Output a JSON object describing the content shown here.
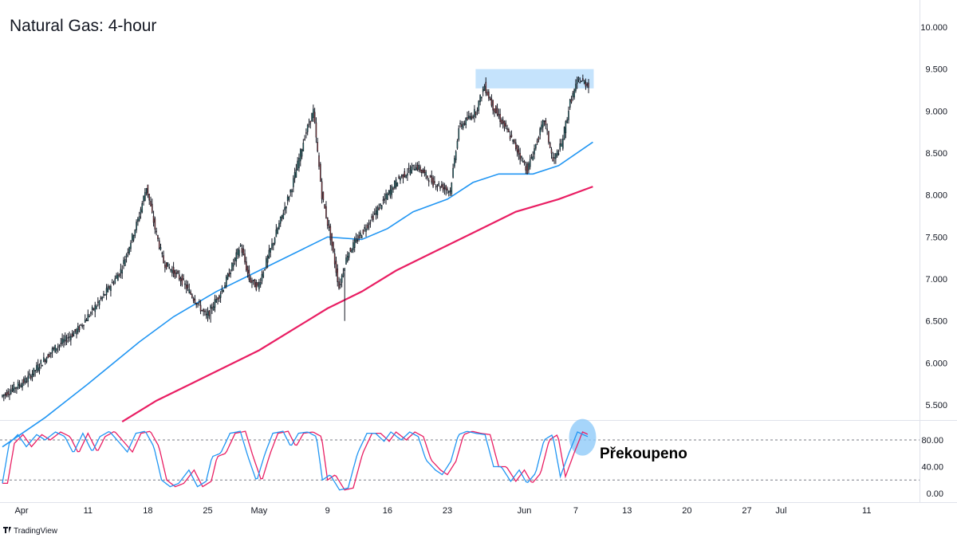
{
  "chart_data": {
    "type": "candlestick",
    "title": "Natural Gas: 4-hour",
    "watermark": "TradingView",
    "colors": {
      "up": "#26a69a",
      "down": "#ef5350",
      "candle_body": "#131722",
      "ma_fast": "#2196f3",
      "ma_slow": "#e91e63",
      "zone": "#bbdefb",
      "stoch_k": "#2196f3",
      "stoch_d": "#e91e63",
      "highlight": "#90caf9"
    },
    "price_axis": {
      "ticks": [
        "5.500",
        "6.000",
        "6.500",
        "7.000",
        "7.500",
        "8.000",
        "8.500",
        "9.000",
        "9.500",
        "10.000"
      ],
      "range": [
        5.3,
        10.2
      ]
    },
    "x_axis": {
      "range_days": [
        0,
        104
      ],
      "ticks": [
        {
          "label": "Apr",
          "day": 0
        },
        {
          "label": "11",
          "day": 10
        },
        {
          "label": "18",
          "day": 17
        },
        {
          "label": "25",
          "day": 24
        },
        {
          "label": "May",
          "day": 30
        },
        {
          "label": "9",
          "day": 38
        },
        {
          "label": "16",
          "day": 45
        },
        {
          "label": "23",
          "day": 52
        },
        {
          "label": "Jun",
          "day": 61
        },
        {
          "label": "7",
          "day": 67
        },
        {
          "label": "13",
          "day": 73
        },
        {
          "label": "20",
          "day": 80
        },
        {
          "label": "27",
          "day": 87
        },
        {
          "label": "Jul",
          "day": 91
        },
        {
          "label": "11",
          "day": 101
        }
      ]
    },
    "price_waypoints": [
      [
        0,
        5.6
      ],
      [
        3,
        5.8
      ],
      [
        6,
        6.15
      ],
      [
        9,
        6.4
      ],
      [
        12,
        6.8
      ],
      [
        14,
        7.1
      ],
      [
        16,
        7.7
      ],
      [
        17,
        8.1
      ],
      [
        18,
        7.6
      ],
      [
        19,
        7.2
      ],
      [
        21,
        7.0
      ],
      [
        23,
        6.7
      ],
      [
        24,
        6.55
      ],
      [
        26,
        6.9
      ],
      [
        28,
        7.4
      ],
      [
        29,
        7.0
      ],
      [
        30,
        6.9
      ],
      [
        32,
        7.5
      ],
      [
        34,
        8.1
      ],
      [
        35.5,
        8.7
      ],
      [
        36.5,
        9.0
      ],
      [
        37.5,
        8.0
      ],
      [
        38.5,
        7.5
      ],
      [
        39.5,
        6.9
      ],
      [
        40.5,
        7.3
      ],
      [
        42.5,
        7.6
      ],
      [
        44.5,
        7.9
      ],
      [
        46.5,
        8.2
      ],
      [
        48.5,
        8.35
      ],
      [
        50.5,
        8.15
      ],
      [
        52.5,
        8.05
      ],
      [
        53.5,
        8.8
      ],
      [
        55.5,
        9.0
      ],
      [
        56.5,
        9.3
      ],
      [
        57.5,
        9.05
      ],
      [
        59.5,
        8.7
      ],
      [
        61.5,
        8.3
      ],
      [
        62.5,
        8.6
      ],
      [
        63.5,
        8.9
      ],
      [
        64.5,
        8.4
      ],
      [
        65.5,
        8.6
      ],
      [
        66.5,
        9.1
      ],
      [
        67.5,
        9.38
      ],
      [
        68.5,
        9.32
      ]
    ],
    "price_low_wicks": [
      [
        40,
        6.5
      ],
      [
        24.3,
        6.48
      ]
    ],
    "zone": {
      "day_from": 55.3,
      "day_to": 69.1,
      "price_from": 9.27,
      "price_to": 9.5
    },
    "ma_fast": [
      [
        0,
        5.0
      ],
      [
        5,
        5.35
      ],
      [
        10,
        5.75
      ],
      [
        16,
        6.25
      ],
      [
        20,
        6.55
      ],
      [
        25,
        6.85
      ],
      [
        30,
        7.1
      ],
      [
        35,
        7.35
      ],
      [
        38,
        7.5
      ],
      [
        42,
        7.47
      ],
      [
        45,
        7.6
      ],
      [
        48,
        7.8
      ],
      [
        52,
        7.95
      ],
      [
        55,
        8.15
      ],
      [
        58,
        8.25
      ],
      [
        62,
        8.25
      ],
      [
        65,
        8.35
      ],
      [
        69,
        8.63
      ]
    ],
    "ma_slow": [
      [
        14,
        5.3
      ],
      [
        18,
        5.55
      ],
      [
        22,
        5.75
      ],
      [
        26,
        5.95
      ],
      [
        30,
        6.15
      ],
      [
        34,
        6.4
      ],
      [
        38,
        6.65
      ],
      [
        42,
        6.85
      ],
      [
        46,
        7.1
      ],
      [
        50,
        7.3
      ],
      [
        55,
        7.55
      ],
      [
        60,
        7.8
      ],
      [
        65,
        7.95
      ],
      [
        69,
        8.1
      ]
    ],
    "stochastic": {
      "ticks": [
        "0.00",
        "40.00",
        "80.00"
      ],
      "range": [
        -5,
        105
      ],
      "levels": [
        80,
        20
      ],
      "k": [
        [
          0,
          15
        ],
        [
          0.8,
          75
        ],
        [
          1.8,
          88
        ],
        [
          2.8,
          70
        ],
        [
          4,
          88
        ],
        [
          5,
          80
        ],
        [
          6.2,
          92
        ],
        [
          7.3,
          85
        ],
        [
          8.3,
          60
        ],
        [
          9.4,
          90
        ],
        [
          10.5,
          62
        ],
        [
          11.4,
          85
        ],
        [
          12.5,
          93
        ],
        [
          13.4,
          80
        ],
        [
          14.6,
          62
        ],
        [
          15.6,
          90
        ],
        [
          16.7,
          93
        ],
        [
          17.7,
          70
        ],
        [
          18.6,
          20
        ],
        [
          19.6,
          10
        ],
        [
          20.6,
          15
        ],
        [
          21.8,
          35
        ],
        [
          22.8,
          10
        ],
        [
          23.8,
          18
        ],
        [
          24.5,
          55
        ],
        [
          25.5,
          60
        ],
        [
          26.6,
          90
        ],
        [
          27.8,
          93
        ],
        [
          28.7,
          55
        ],
        [
          29.7,
          18
        ],
        [
          30.7,
          60
        ],
        [
          31.6,
          90
        ],
        [
          32.8,
          93
        ],
        [
          33.7,
          70
        ],
        [
          34.6,
          90
        ],
        [
          35.7,
          92
        ],
        [
          36.7,
          85
        ],
        [
          37.4,
          20
        ],
        [
          38.3,
          28
        ],
        [
          39.4,
          5
        ],
        [
          40.4,
          8
        ],
        [
          41.5,
          60
        ],
        [
          42.6,
          90
        ],
        [
          43.6,
          90
        ],
        [
          44.6,
          78
        ],
        [
          45.4,
          92
        ],
        [
          46.6,
          80
        ],
        [
          47.6,
          92
        ],
        [
          48.6,
          85
        ],
        [
          49.5,
          50
        ],
        [
          50.6,
          35
        ],
        [
          51.4,
          28
        ],
        [
          52.4,
          48
        ],
        [
          53.3,
          88
        ],
        [
          54.3,
          93
        ],
        [
          55.3,
          90
        ],
        [
          56.4,
          88
        ],
        [
          57.4,
          40
        ],
        [
          58.3,
          40
        ],
        [
          59.4,
          18
        ],
        [
          60.4,
          35
        ],
        [
          61.3,
          15
        ],
        [
          62.3,
          30
        ],
        [
          63.3,
          80
        ],
        [
          64.3,
          88
        ],
        [
          65.2,
          25
        ],
        [
          66.2,
          60
        ],
        [
          67.2,
          92
        ],
        [
          68.4,
          85
        ]
      ],
      "d_lag": 0.6
    },
    "annotations": [
      {
        "text": "Překoupeno"
      }
    ]
  }
}
